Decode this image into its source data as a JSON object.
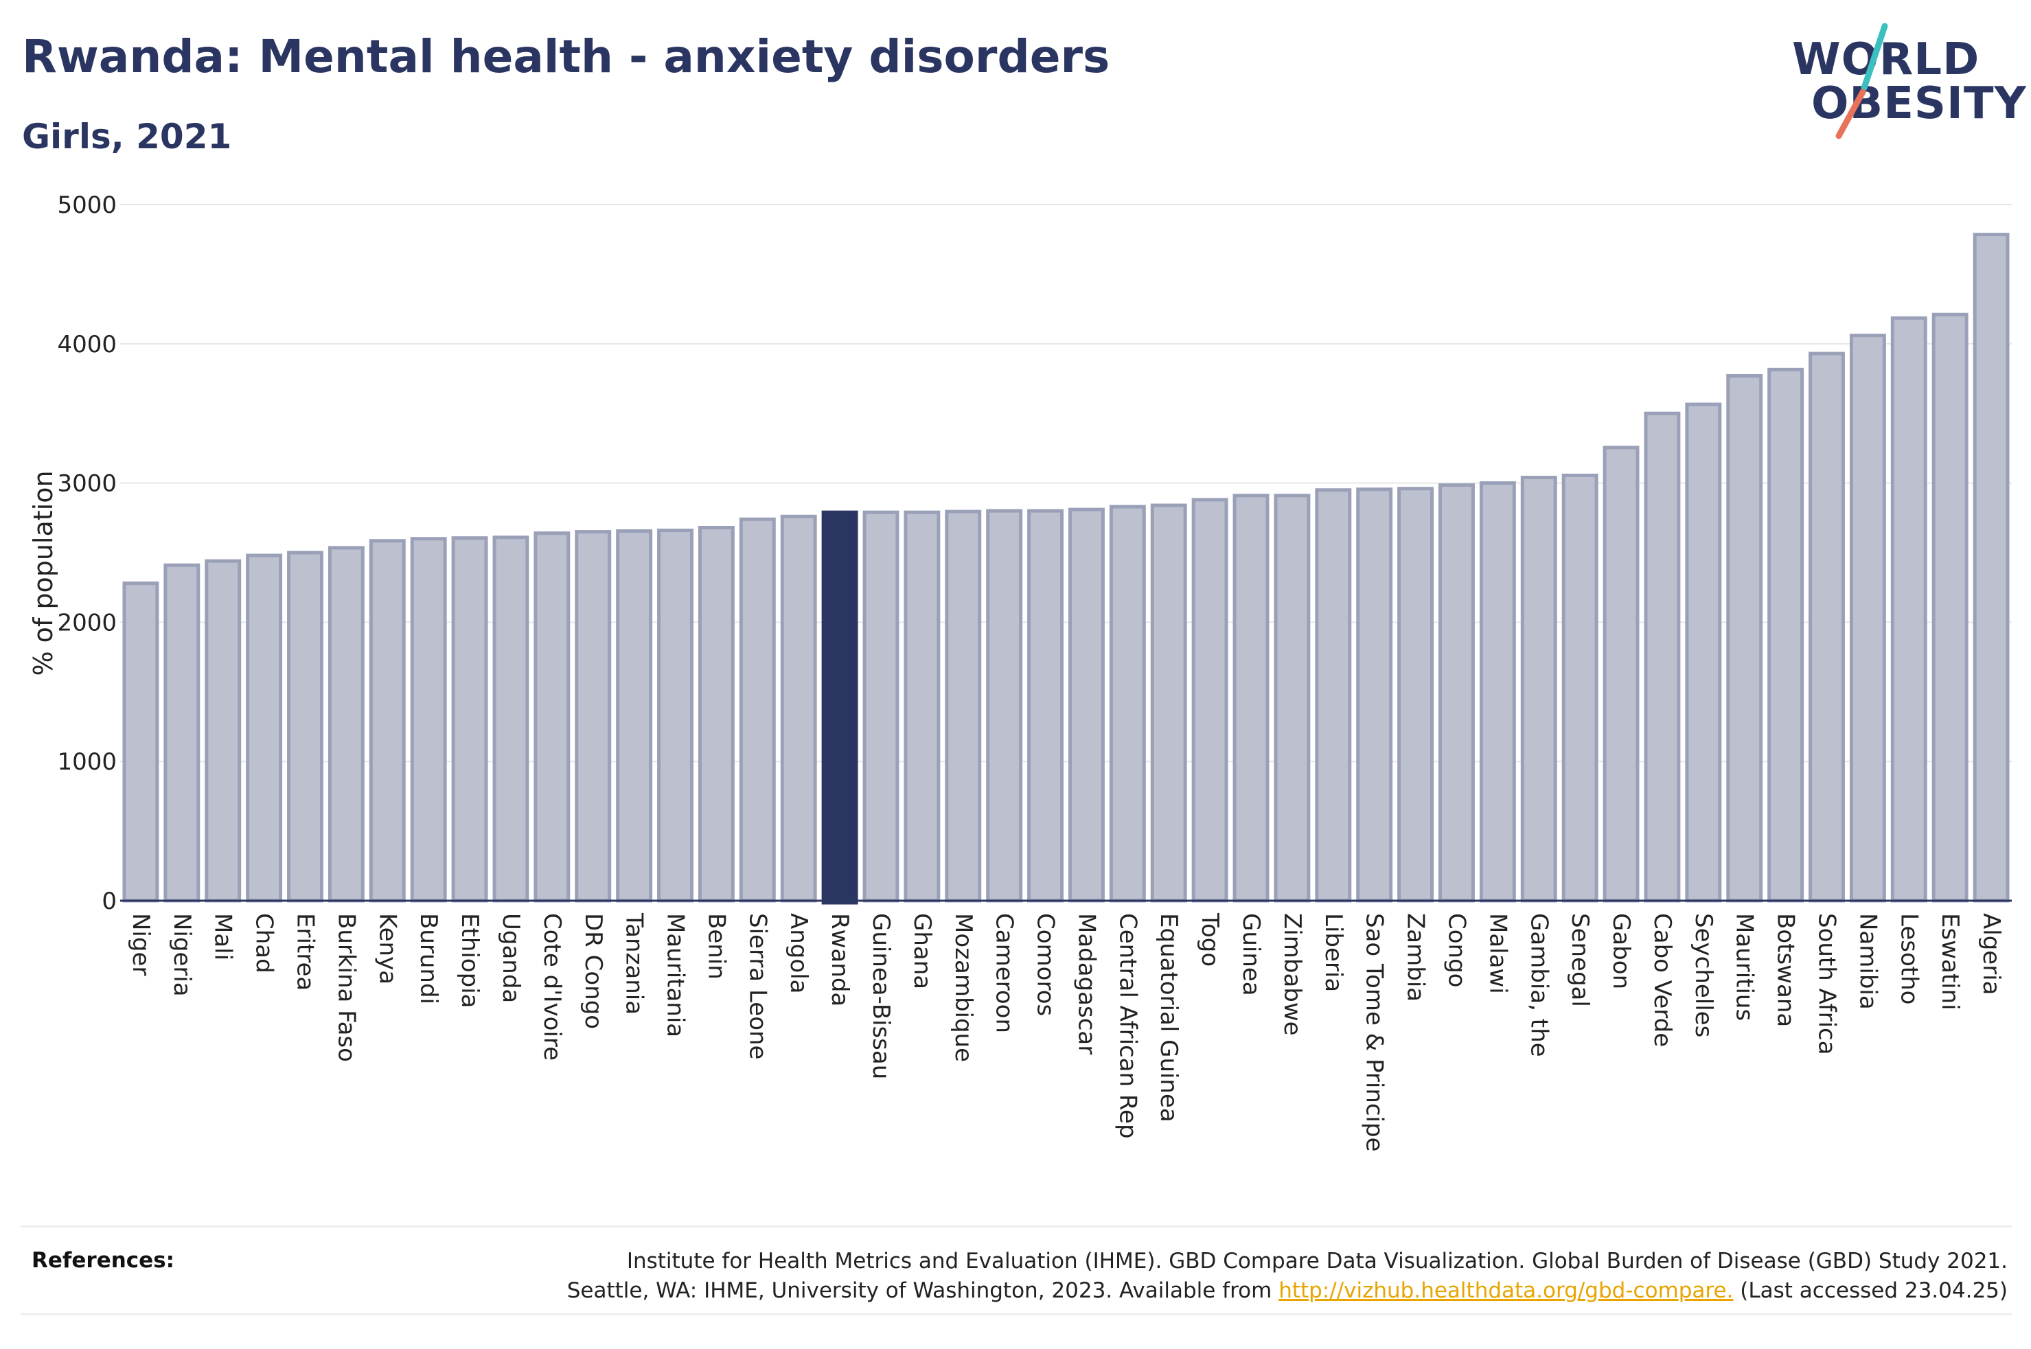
{
  "header": {
    "title": "Rwanda: Mental health - anxiety disorders",
    "subtitle": "Girls, 2021"
  },
  "logo": {
    "line1": "WORLD",
    "line2": "OBESITY",
    "slash_colors": [
      "#3bbfbf",
      "#e8735a"
    ]
  },
  "colors": {
    "bar": "#bcc0cf",
    "bar_border": "#9aa0b8",
    "highlight": "#2a3561",
    "text": "#2a3561",
    "grid": "#e6e6e6",
    "link": "#e8a500"
  },
  "chart_data": {
    "type": "bar",
    "ylabel": "% of population",
    "ylim": [
      0,
      5000
    ],
    "yticks": [
      "0",
      "1000",
      "2000",
      "3000",
      "4000",
      "5000"
    ],
    "grid": true,
    "highlight": "Rwanda",
    "categories": [
      "Niger",
      "Nigeria",
      "Mali",
      "Chad",
      "Eritrea",
      "Burkina Faso",
      "Kenya",
      "Burundi",
      "Ethiopia",
      "Uganda",
      "Cote d'Ivoire",
      "DR Congo",
      "Tanzania",
      "Mauritania",
      "Benin",
      "Sierra Leone",
      "Angola",
      "Rwanda",
      "Guinea-Bissau",
      "Ghana",
      "Mozambique",
      "Cameroon",
      "Comoros",
      "Madagascar",
      "Central African Rep",
      "Equatorial Guinea",
      "Togo",
      "Guinea",
      "Zimbabwe",
      "Liberia",
      "Sao Tome & Principe",
      "Zambia",
      "Congo",
      "Malawi",
      "Gambia, the",
      "Senegal",
      "Gabon",
      "Cabo Verde",
      "Seychelles",
      "Mauritius",
      "Botswana",
      "South Africa",
      "Namibia",
      "Lesotho",
      "Eswatini",
      "Algeria"
    ],
    "values": [
      2280,
      2410,
      2440,
      2480,
      2500,
      2535,
      2585,
      2600,
      2605,
      2610,
      2640,
      2650,
      2655,
      2660,
      2680,
      2740,
      2760,
      2790,
      2790,
      2790,
      2795,
      2800,
      2800,
      2810,
      2830,
      2840,
      2880,
      2910,
      2910,
      2950,
      2955,
      2960,
      2985,
      3000,
      3040,
      3055,
      3255,
      3500,
      3565,
      3770,
      3815,
      3930,
      4060,
      4185,
      4210,
      4785
    ]
  },
  "references": {
    "label": "References:",
    "line1": "Institute for Health Metrics and Evaluation (IHME). GBD Compare Data Visualization. Global Burden of Disease (GBD) Study 2021.",
    "line2_prefix": "Seattle, WA: IHME, University of Washington, 2023. Available from ",
    "link": "http://vizhub.healthdata.org/gbd-compare.",
    "line2_suffix": " (Last accessed 23.04.25)"
  }
}
